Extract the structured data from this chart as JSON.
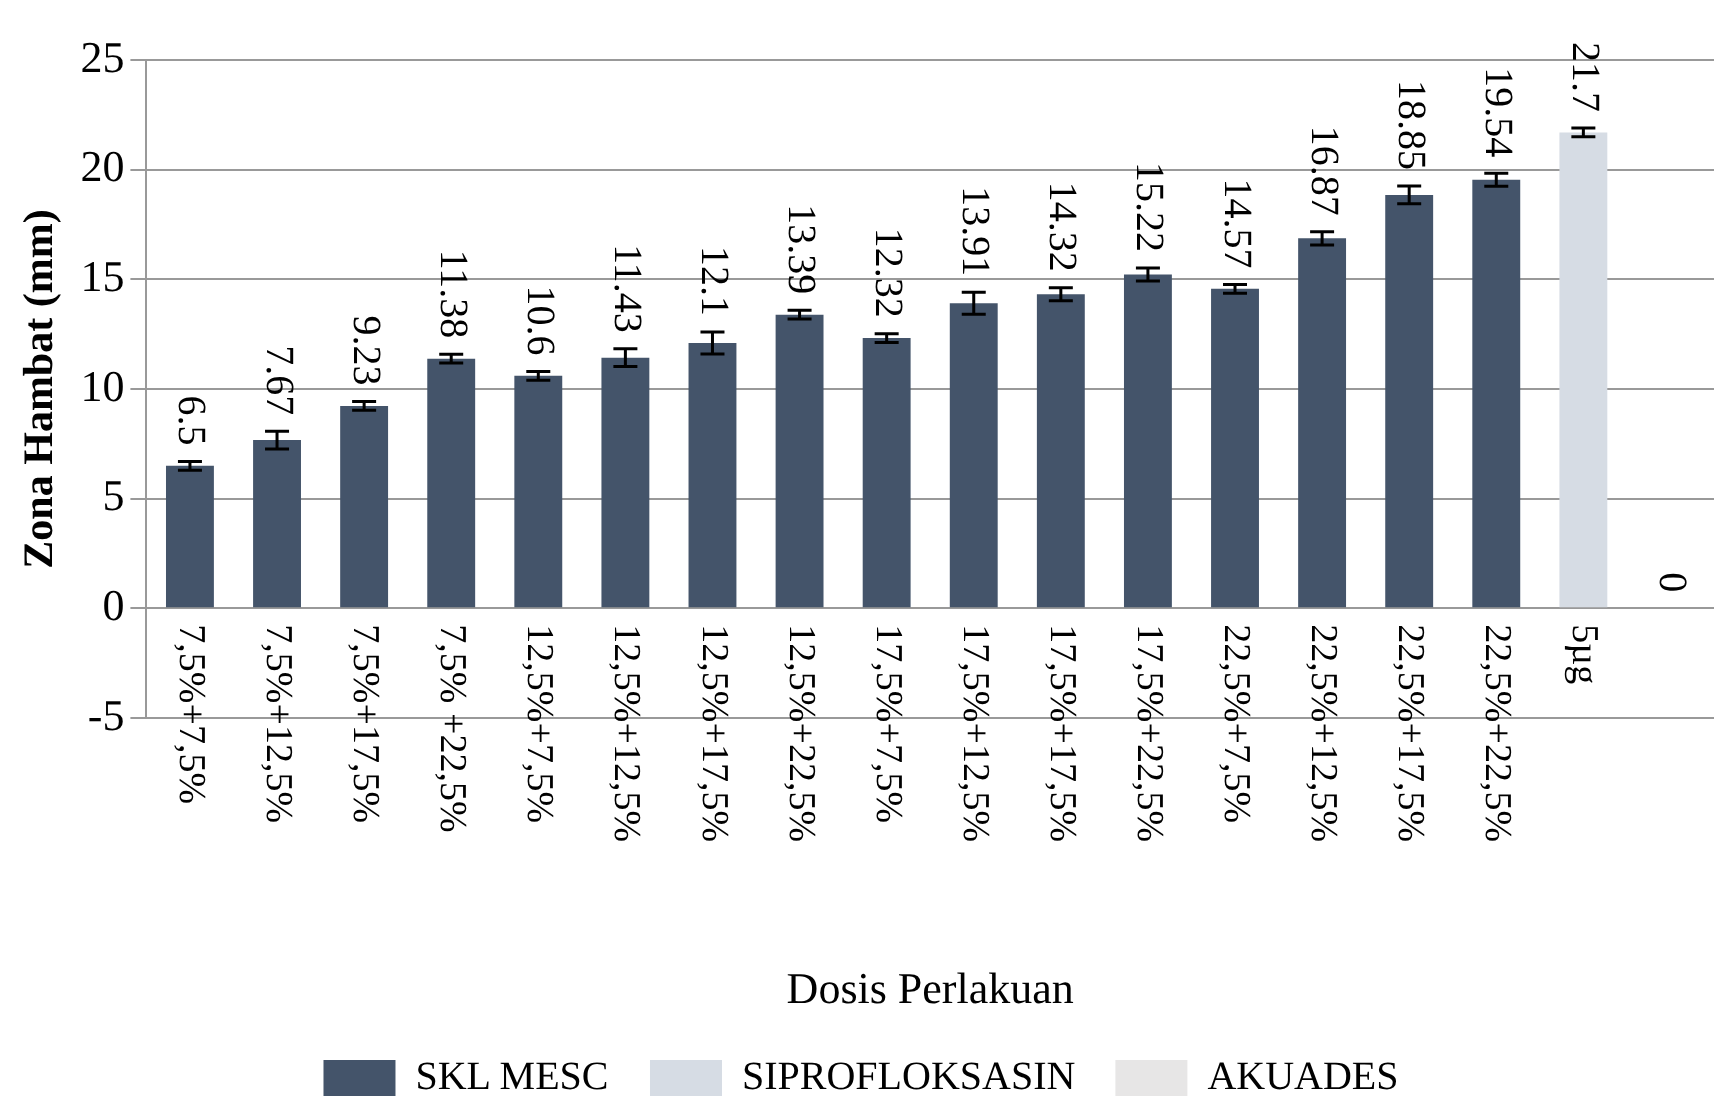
{
  "chart_data": {
    "type": "bar",
    "xlabel": "Dosis Perlakuan",
    "ylabel": "Zona Hambat (mm)",
    "categories": [
      "7,5%+7,5%",
      "7,5%+12,5%",
      "7,5%+17,5%",
      "7,5% +22,5%",
      "12,5%+7,5%",
      "12,5%+12,5%",
      "12,5%+17,5%",
      "12,5%+22,5%",
      "17,5%+7,5%",
      "17,5%+12,5%",
      "17,5%+17,5%",
      "17,5%+22,5%",
      "22,5%+7,5%",
      "22,5%+12,5%",
      "22,5%+17,5%",
      "22,5%+22,5%",
      "5µg",
      null
    ],
    "series": [
      {
        "name": "SKL MESC",
        "color": "#44546a",
        "values": [
          6.5,
          7.67,
          9.23,
          11.38,
          10.6,
          11.43,
          12.1,
          13.39,
          12.32,
          13.91,
          14.32,
          15.22,
          14.57,
          16.87,
          18.85,
          19.54,
          null,
          null
        ],
        "errors": [
          0.2,
          0.4,
          0.2,
          0.2,
          0.2,
          0.4,
          0.5,
          0.2,
          0.2,
          0.5,
          0.3,
          0.3,
          0.2,
          0.3,
          0.4,
          0.3,
          null,
          null
        ]
      },
      {
        "name": "SIPROFLOKSASIN",
        "color": "#d6dce4",
        "values": [
          null,
          null,
          null,
          null,
          null,
          null,
          null,
          null,
          null,
          null,
          null,
          null,
          null,
          null,
          null,
          null,
          21.7,
          null
        ],
        "errors": [
          null,
          null,
          null,
          null,
          null,
          null,
          null,
          null,
          null,
          null,
          null,
          null,
          null,
          null,
          null,
          null,
          0.2,
          null
        ]
      },
      {
        "name": "AKUADES",
        "color": "#e7e6e6",
        "values": [
          null,
          null,
          null,
          null,
          null,
          null,
          null,
          null,
          null,
          null,
          null,
          null,
          null,
          null,
          null,
          null,
          null,
          0
        ],
        "errors": [
          null,
          null,
          null,
          null,
          null,
          null,
          null,
          null,
          null,
          null,
          null,
          null,
          null,
          null,
          null,
          null,
          null,
          null
        ]
      }
    ],
    "ylim": [
      -5,
      25
    ],
    "yticks": [
      -5,
      0,
      5,
      10,
      15,
      20,
      25
    ],
    "grid": "y",
    "legend": "bottom",
    "data_labels": true
  }
}
